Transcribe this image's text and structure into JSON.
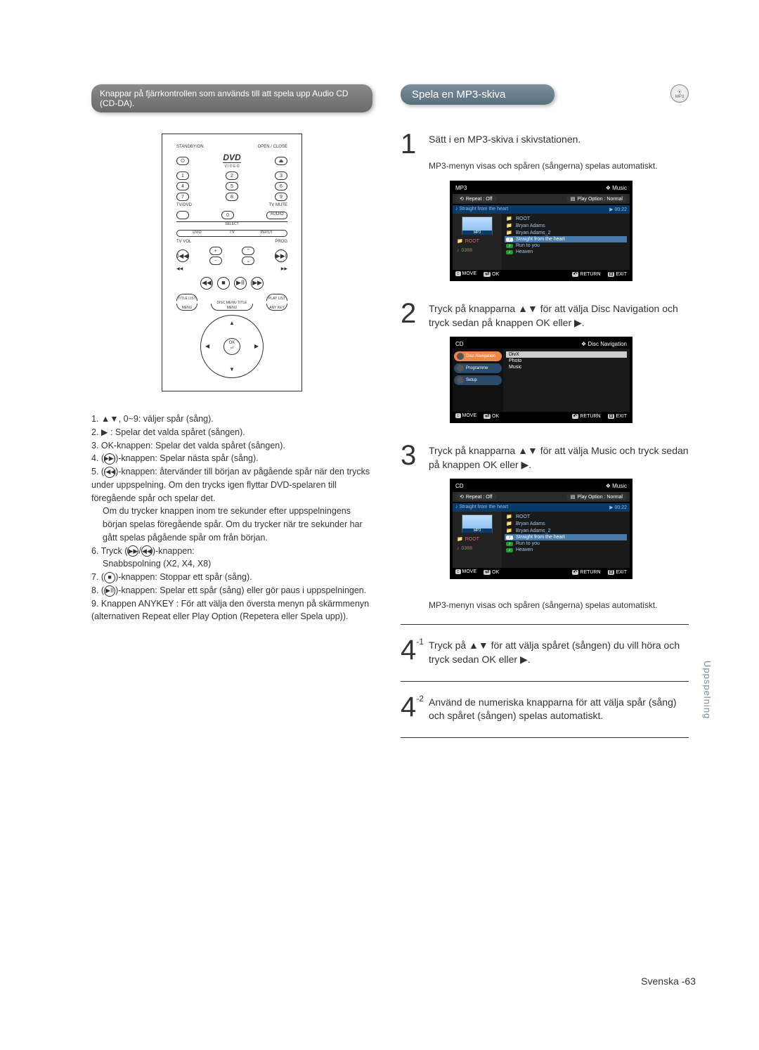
{
  "left": {
    "banner": "Knappar på fjärrkontrollen som används till att spela upp Audio CD (CD-DA).",
    "remote": {
      "standby": "STANDBY/ON",
      "open": "OPEN / CLOSE",
      "dvd": "DVD",
      "video_sub": "V I D E O",
      "nums": [
        "1",
        "2",
        "3",
        "4",
        "5",
        "6",
        "7",
        "8",
        "9",
        "0"
      ],
      "tvdvd": "TV/DVD",
      "tvmute": "TV MUTE",
      "audio": "AUDIO",
      "select": "SELECT",
      "tabs": [
        "DVD",
        "TV",
        "INPUT"
      ],
      "tvvol": "TV VOL",
      "prog": "PROG",
      "curve_l1": "TITLE LIST",
      "curve_r1": "PLAY LIST",
      "curve_l2": "MENU",
      "curve_c": "DISC MENU TITLE MENU",
      "curve_r2": "ANY KEY",
      "ok": "OK"
    },
    "legend": {
      "l1": "1. ▲▼, 0~9: väljer spår (sång).",
      "l2": "2. ▶ : Spelar det valda spåret (sången).",
      "l3": "3. OK-knappen:  Spelar det valda spåret (sången).",
      "l4a": "4. (",
      "l4_sym": "▶▶I",
      "l4b": ")-knappen:  Spelar nästa spår (sång).",
      "l5a": "5. (",
      "l5_sym": "I◀◀",
      "l5b": ")-knappen:  återvänder till början av pågående spår när den trycks under uppspelning. Om den trycks igen flyttar DVD-spelaren till föregående spår och spelar det.",
      "l5c": "Om du trycker knappen inom tre sekunder efter uppspelningens början spelas föregående spår. Om du trycker när tre sekunder har gått spelas pågående spår om från början.",
      "l6a": "6. Tryck (",
      "l6s1": "▶▶",
      "l6m": "/",
      "l6s2": "◀◀",
      "l6b": ")-knappen:",
      "l6c": "Snabbspolning (X2, X4, X8)",
      "l7a": "7. (",
      "l7_sym": "■",
      "l7b": ")-knappen:  Stoppar ett spår (sång).",
      "l8a": "8. (",
      "l8_sym": "▶II",
      "l8b": ")-knappen:  Spelar ett spår (sång) eller gör paus i uppspelningen.",
      "l9": "9. Knappen ANYKEY : För att välja den översta menyn på skärmmenyn (alternativen Repeat eller Play Option (Repetera eller Spela upp))."
    }
  },
  "right": {
    "banner": "Spela en MP3-skiva",
    "badge": "MP3",
    "step1": {
      "num": "1",
      "title": "Sätt i en MP3-skiva i skivstationen.",
      "sub": "MP3-menyn visas och spåren (sångerna) spelas automatiskt."
    },
    "screen_a": {
      "title": "MP3",
      "crumb": "❖ Music",
      "repeat": "Repeat : Off",
      "playopt": "Play Option : Normal",
      "now": "♪ Straight from the heart",
      "time": "▶ 00:22",
      "left_items": [
        "ROOT",
        "0388"
      ],
      "right_items": [
        {
          "t": "folder",
          "label": "ROOT"
        },
        {
          "t": "folder",
          "label": "Bryan Adams"
        },
        {
          "t": "folder",
          "label": "Bryan Adams_2"
        },
        {
          "t": "sel",
          "label": "Straight from the heart"
        },
        {
          "t": "note",
          "label": "Run to you"
        },
        {
          "t": "note",
          "label": "Heaven"
        }
      ],
      "ftr": {
        "move": "MOVE",
        "ok": "OK",
        "ret": "RETURN",
        "exit": "EXIT"
      }
    },
    "step2": {
      "num": "2",
      "text": "Tryck på knapparna ▲▼ för att välja Disc Navigation och tryck sedan på knappen OK eller ▶."
    },
    "screen_b": {
      "title": "CD",
      "crumb": "❖ Disc Navigation",
      "menu_left": [
        {
          "sel": true,
          "label": "Disc Navigation"
        },
        {
          "sel": false,
          "label": "Programme"
        },
        {
          "sel": false,
          "label": "Setup"
        }
      ],
      "menu_right": [
        "DivX",
        "Photo",
        "Music"
      ],
      "ftr": {
        "move": "MOVE",
        "ok": "OK",
        "ret": "RETURN",
        "exit": "EXIT"
      }
    },
    "step3": {
      "num": "3",
      "text": "Tryck på knapparna ▲▼ för att välja Music och tryck sedan på knappen OK eller ▶."
    },
    "screen_c": {
      "title": "CD",
      "crumb": "❖ Music",
      "repeat": "Repeat : Off",
      "playopt": "Play Option : Normal",
      "now": "♪ Straight from the heart",
      "time": "▶ 00:22",
      "left_items": [
        "ROOT",
        "0388"
      ],
      "right_items": [
        {
          "t": "folder",
          "label": "ROOT"
        },
        {
          "t": "folder",
          "label": "Bryan Adams"
        },
        {
          "t": "folder",
          "label": "Bryan Adams_2"
        },
        {
          "t": "sel",
          "label": "Straight from the heart"
        },
        {
          "t": "note",
          "label": "Run to you"
        },
        {
          "t": "note",
          "label": "Heaven"
        }
      ]
    },
    "post3": "MP3-menyn visas och spåren (sångerna) spelas automatiskt.",
    "step4a": {
      "num": "4",
      "sup": "-1",
      "text": "Tryck på ▲▼ för att välja spåret (sången) du vill höra och tryck sedan OK eller ▶."
    },
    "step4b": {
      "num": "4",
      "sup": "-2",
      "text": "Använd de numeriska knapparna för att välja spår (sång) och spåret (sången) spelas automatiskt."
    }
  },
  "side": "Uppspelning",
  "footer_lang": "Svenska -",
  "footer_page": "63",
  "colors": {
    "banner_left": "#7a7a7a",
    "banner_right": "#6a7f8d",
    "screen_bg": "#000000",
    "screen_blue": "#0a3a6a",
    "side_text": "#7a8a9a"
  }
}
